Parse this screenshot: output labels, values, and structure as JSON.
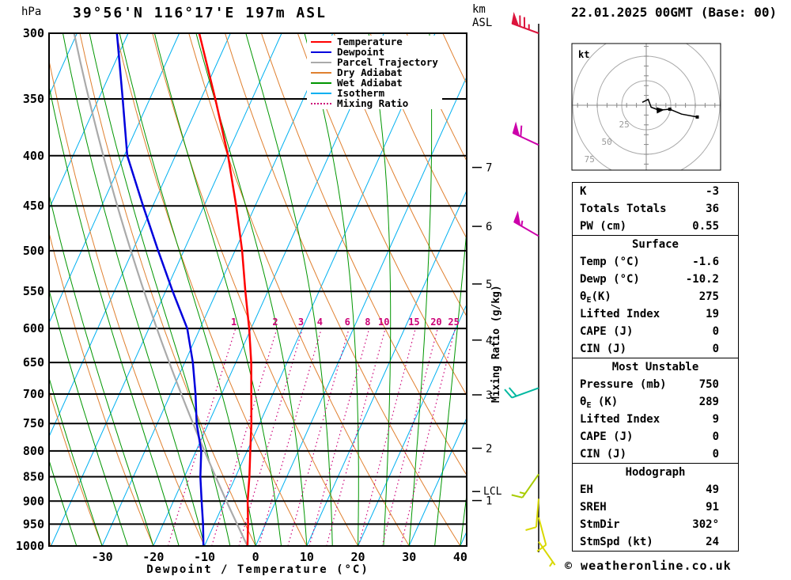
{
  "title": "39°56'N 116°17'E 197m ASL",
  "datetime": "22.01.2025 00GMT (Base: 00)",
  "copyright": "© weatheronline.co.uk",
  "axis": {
    "pressure_unit": "hPa",
    "km_unit_line1": "km",
    "km_unit_line2": "ASL",
    "x_label": "Dewpoint / Temperature (°C)",
    "right_label": "Mixing Ratio (g/kg)",
    "pressure_ticks": [
      300,
      350,
      400,
      450,
      500,
      550,
      600,
      650,
      700,
      750,
      800,
      850,
      900,
      950,
      1000
    ],
    "temp_ticks": [
      -30,
      -20,
      -10,
      0,
      10,
      20,
      30,
      40
    ],
    "km_ticks": [
      1,
      2,
      3,
      4,
      5,
      6,
      7
    ],
    "lcl_label": "LCL",
    "lcl_pressure": 880
  },
  "legend": {
    "items": [
      {
        "label": "Temperature",
        "color": "#ff0000",
        "style": "solid"
      },
      {
        "label": "Dewpoint",
        "color": "#0000dd",
        "style": "solid"
      },
      {
        "label": "Parcel Trajectory",
        "color": "#aaaaaa",
        "style": "solid"
      },
      {
        "label": "Dry Adiabat",
        "color": "#e08030",
        "style": "solid"
      },
      {
        "label": "Wet Adiabat",
        "color": "#009600",
        "style": "solid"
      },
      {
        "label": "Isotherm",
        "color": "#00b0f0",
        "style": "solid"
      },
      {
        "label": "Mixing Ratio",
        "color": "#cc0077",
        "style": "dotted"
      }
    ]
  },
  "chart_data": {
    "type": "skewt",
    "pressure_axis_range": [
      300,
      1000
    ],
    "temp_axis_range": [
      -40,
      41
    ],
    "pressure_levels": [
      1000,
      950,
      900,
      850,
      800,
      750,
      700,
      650,
      600,
      550,
      500,
      450,
      400,
      350,
      300
    ],
    "temperature_c": [
      -1.6,
      -3.4,
      -5.5,
      -7.3,
      -9.4,
      -11.6,
      -14.2,
      -17.0,
      -20.4,
      -24.4,
      -28.6,
      -33.7,
      -39.7,
      -47.2,
      -56.1
    ],
    "dewpoint_c": [
      -10.2,
      -12.2,
      -14.5,
      -16.9,
      -19.0,
      -22.3,
      -25.1,
      -28.4,
      -32.5,
      -38.6,
      -45.0,
      -51.9,
      -59.4,
      -65.3,
      -72.2
    ],
    "parcel_surface_temp_c": -1.6,
    "mixing_ratio_values": [
      1,
      2,
      3,
      4,
      6,
      8,
      10,
      15,
      20,
      25
    ],
    "isotherm_range": [
      -90,
      40
    ],
    "isotherm_step": 10,
    "dry_adiabat_range": [
      -40,
      110
    ],
    "dry_adiabat_step": 10,
    "wet_adiabat_surface_temps": [
      -35,
      -30,
      -25,
      -20,
      -15,
      -10,
      -5,
      0,
      5,
      10,
      15,
      20,
      25,
      30,
      35,
      40
    ],
    "wind_barbs": [
      {
        "pressure": 300,
        "dir": 290,
        "speed": 75,
        "color": "#dc143c"
      },
      {
        "pressure": 390,
        "dir": 295,
        "speed": 60,
        "color": "#cc00aa"
      },
      {
        "pressure": 483,
        "dir": 300,
        "speed": 55,
        "color": "#cc00aa"
      },
      {
        "pressure": 690,
        "dir": 250,
        "speed": 20,
        "color": "#00b8a0"
      },
      {
        "pressure": 845,
        "dir": 215,
        "speed": 15,
        "color": "#a8cc00"
      },
      {
        "pressure": 895,
        "dir": 185,
        "speed": 10,
        "color": "#d8d800"
      },
      {
        "pressure": 935,
        "dir": 165,
        "speed": 10,
        "color": "#d8d800"
      },
      {
        "pressure": 990,
        "dir": 145,
        "speed": 5,
        "color": "#d8d800"
      }
    ]
  },
  "hodograph": {
    "unit_label": "kt",
    "rings_kt": [
      25,
      50,
      75
    ],
    "ring_labels": [
      "25",
      "50",
      "75"
    ],
    "trace_u": [
      -4,
      2,
      5,
      13,
      24,
      36,
      52
    ],
    "trace_v": [
      3,
      6,
      -2,
      -5,
      -4,
      -9,
      -12
    ],
    "dot_indices": [
      4,
      6
    ],
    "arrow_index": 3
  },
  "tables": {
    "indices": {
      "rows": [
        {
          "label": "K",
          "value": "-3"
        },
        {
          "label": "Totals Totals",
          "value": "36"
        },
        {
          "label": "PW (cm)",
          "value": "0.55"
        }
      ]
    },
    "surface": {
      "header": "Surface",
      "rows": [
        {
          "label": "Temp (°C)",
          "value": "-1.6"
        },
        {
          "label": "Dewp (°C)",
          "value": "-10.2"
        },
        {
          "label_theta": "θ",
          "label_sub": "E",
          "label_rest": "(K)",
          "value": "275"
        },
        {
          "label": "Lifted Index",
          "value": "19"
        },
        {
          "label": "CAPE (J)",
          "value": "0"
        },
        {
          "label": "CIN (J)",
          "value": "0"
        }
      ]
    },
    "most_unstable": {
      "header": "Most Unstable",
      "rows": [
        {
          "label": "Pressure (mb)",
          "value": "750"
        },
        {
          "label_theta": "θ",
          "label_sub": "E",
          "label_rest": " (K)",
          "value": "289"
        },
        {
          "label": "Lifted Index",
          "value": "9"
        },
        {
          "label": "CAPE (J)",
          "value": "0"
        },
        {
          "label": "CIN (J)",
          "value": "0"
        }
      ]
    },
    "hodograph": {
      "header": "Hodograph",
      "rows": [
        {
          "label": "EH",
          "value": "49"
        },
        {
          "label": "SREH",
          "value": "91"
        },
        {
          "label": "StmDir",
          "value": "302°"
        },
        {
          "label": "StmSpd (kt)",
          "value": "24"
        }
      ]
    }
  },
  "colors": {
    "temperature": "#ff0000",
    "dewpoint": "#0000dd",
    "parcel": "#aaaaaa",
    "dry_adiabat": "#e08030",
    "wet_adiabat": "#009600",
    "isotherm": "#00b0f0",
    "mixing_ratio": "#cc0077",
    "grid": "#000000",
    "hodo_ring": "#aaaaaa",
    "hodo_label": "#999999"
  }
}
